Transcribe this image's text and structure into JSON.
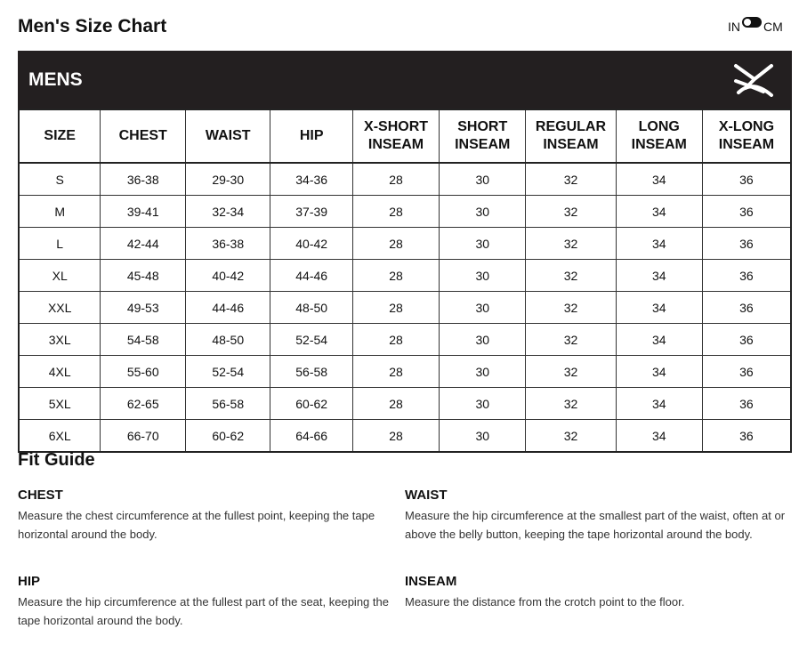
{
  "title": "Men's Size Chart",
  "unit_toggle": {
    "left": "IN",
    "right": "CM",
    "selected": "IN"
  },
  "banner": {
    "label": "MENS",
    "logo": "brand-x-logo"
  },
  "table": {
    "headers": [
      [
        "SIZE"
      ],
      [
        "CHEST"
      ],
      [
        "WAIST"
      ],
      [
        "HIP"
      ],
      [
        "X-SHORT",
        "INSEAM"
      ],
      [
        "SHORT",
        "INSEAM"
      ],
      [
        "REGULAR",
        "INSEAM"
      ],
      [
        "LONG",
        "INSEAM"
      ],
      [
        "X-LONG",
        "INSEAM"
      ]
    ],
    "rows": [
      [
        "S",
        "36-38",
        "29-30",
        "34-36",
        "28",
        "30",
        "32",
        "34",
        "36"
      ],
      [
        "M",
        "39-41",
        "32-34",
        "37-39",
        "28",
        "30",
        "32",
        "34",
        "36"
      ],
      [
        "L",
        "42-44",
        "36-38",
        "40-42",
        "28",
        "30",
        "32",
        "34",
        "36"
      ],
      [
        "XL",
        "45-48",
        "40-42",
        "44-46",
        "28",
        "30",
        "32",
        "34",
        "36"
      ],
      [
        "XXL",
        "49-53",
        "44-46",
        "48-50",
        "28",
        "30",
        "32",
        "34",
        "36"
      ],
      [
        "3XL",
        "54-58",
        "48-50",
        "52-54",
        "28",
        "30",
        "32",
        "34",
        "36"
      ],
      [
        "4XL",
        "55-60",
        "52-54",
        "56-58",
        "28",
        "30",
        "32",
        "34",
        "36"
      ],
      [
        "5XL",
        "62-65",
        "56-58",
        "60-62",
        "28",
        "30",
        "32",
        "34",
        "36"
      ],
      [
        "6XL",
        "66-70",
        "60-62",
        "64-66",
        "28",
        "30",
        "32",
        "34",
        "36"
      ]
    ]
  },
  "fit_guide": {
    "title": "Fit Guide",
    "sections": [
      {
        "title": "CHEST",
        "text": "Measure the chest circumference at the fullest point, keeping the tape horizontal around the body."
      },
      {
        "title": "WAIST",
        "text": "Measure the hip circumference at the smallest part of the waist, often at or above the belly button, keeping the tape horizontal around the body."
      },
      {
        "title": "HIP",
        "text": "Measure the hip circumference at the fullest part of the seat, keeping the tape horizontal around the body."
      },
      {
        "title": "INSEAM",
        "text": "Measure the distance from the crotch point to the floor."
      }
    ]
  }
}
